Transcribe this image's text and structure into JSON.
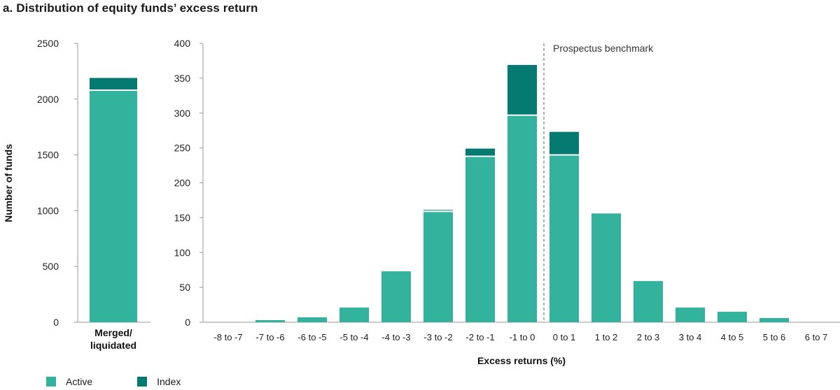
{
  "title": "a. Distribution of equity funds’ excess return",
  "colors": {
    "active": "#33b39e",
    "index": "#047a70"
  },
  "chart_data": [
    {
      "type": "bar",
      "stacked": true,
      "categories": [
        "Merged/ liquidated"
      ],
      "category_lines": [
        "Merged/",
        "liquidated"
      ],
      "ylabel": "Number of funds",
      "ylim": [
        0,
        2500
      ],
      "yticks": [
        0,
        500,
        1000,
        1500,
        2000,
        2500
      ],
      "series": [
        {
          "name": "Active",
          "values": [
            2080
          ]
        },
        {
          "name": "Index",
          "values": [
            110
          ]
        }
      ]
    },
    {
      "type": "bar",
      "stacked": true,
      "categories": [
        "-8 to -7",
        "-7 to -6",
        "-6 to -5",
        "-5 to -4",
        "-4 to -3",
        "-3 to -2",
        "-2 to -1",
        "-1 to 0",
        "0 to 1",
        "1 to 2",
        "2 to 3",
        "3 to 4",
        "4 to 5",
        "5 to 6",
        "6 to 7"
      ],
      "xlabel": "Excess returns (%)",
      "ylim": [
        0,
        400
      ],
      "yticks": [
        0,
        50,
        100,
        150,
        200,
        250,
        300,
        350,
        400
      ],
      "series": [
        {
          "name": "Active",
          "values": [
            0,
            3,
            7,
            21,
            73,
            159,
            238,
            297,
            240,
            156,
            59,
            21,
            15,
            6,
            0
          ]
        },
        {
          "name": "Index",
          "values": [
            0,
            0,
            0,
            0,
            0,
            2,
            11,
            72,
            33,
            0,
            0,
            0,
            0,
            0,
            0
          ]
        }
      ],
      "annotations": [
        {
          "text": "Prospectus benchmark",
          "at_category_boundary": "-1 to 0 | 0 to 1"
        }
      ]
    }
  ],
  "legend": [
    {
      "label": "Active"
    },
    {
      "label": "Index"
    }
  ]
}
